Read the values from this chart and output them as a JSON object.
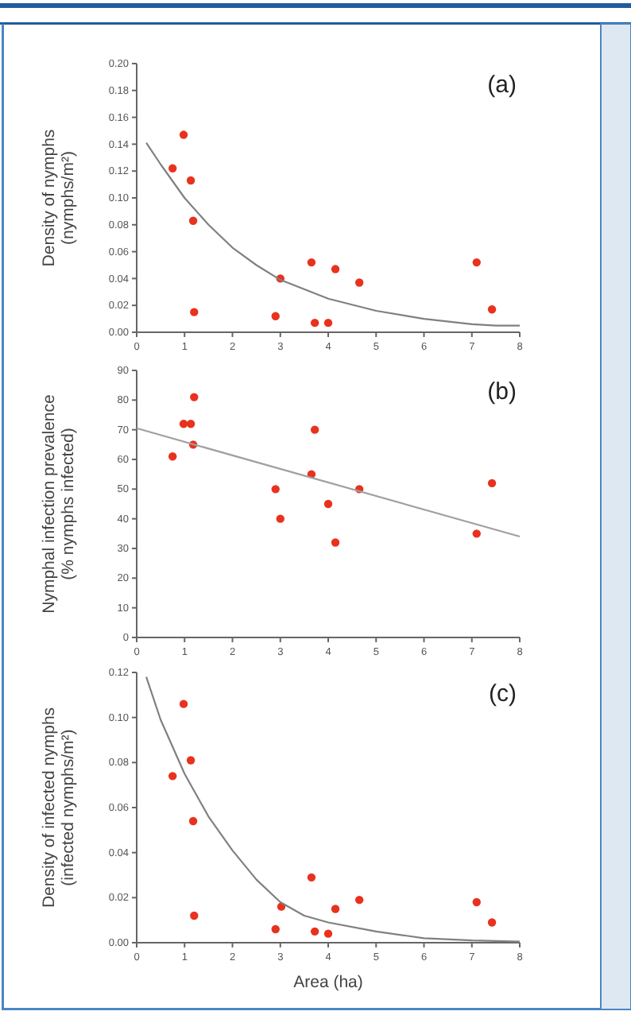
{
  "chart_data": [
    {
      "type": "scatter",
      "title": "(a)",
      "ylabel": "Density of nymphs\n(nymphs/m²)",
      "xlim": [
        0,
        8
      ],
      "xticks": [
        0,
        1,
        2,
        3,
        4,
        5,
        6,
        7,
        8
      ],
      "ylim": [
        0,
        0.2
      ],
      "yticks": [
        {
          "value": 0,
          "label": "0.00"
        },
        {
          "value": 0.02,
          "label": "0.02"
        },
        {
          "value": 0.04,
          "label": "0.04"
        },
        {
          "value": 0.06,
          "label": "0.06"
        },
        {
          "value": 0.08,
          "label": "0.08"
        },
        {
          "value": 0.1,
          "label": "0.10"
        },
        {
          "value": 0.12,
          "label": "0.12"
        },
        {
          "value": 0.14,
          "label": "0.14"
        },
        {
          "value": 0.16,
          "label": "0.16"
        },
        {
          "value": 0.18,
          "label": "0.18"
        },
        {
          "value": 0.2,
          "label": "0.20"
        }
      ],
      "grid": false,
      "marker": "circle",
      "series": [
        {
          "color": "#e8321e",
          "x": [
            0.75,
            0.98,
            1.13,
            1.18,
            1.2,
            2.9,
            3.0,
            3.65,
            3.72,
            4.0,
            4.15,
            4.65,
            7.1,
            7.42
          ],
          "values": [
            0.122,
            0.147,
            0.113,
            0.083,
            0.015,
            0.012,
            0.04,
            0.052,
            0.007,
            0.007,
            0.047,
            0.037,
            0.052,
            0.017
          ]
        },
        {
          "type": "line",
          "marker": "none",
          "color": "#808080",
          "x": [
            0.2,
            0.5,
            1,
            1.5,
            2,
            2.5,
            3,
            4,
            5,
            6,
            7,
            7.5,
            8
          ],
          "values": [
            0.141,
            0.125,
            0.1,
            0.08,
            0.063,
            0.05,
            0.039,
            0.025,
            0.016,
            0.01,
            0.006,
            0.005,
            0.005
          ]
        }
      ]
    },
    {
      "type": "scatter",
      "title": "(b)",
      "ylabel": "Nymphal infection prevalence\n(% nymphs infected)",
      "xlim": [
        0,
        8
      ],
      "xticks": [
        0,
        1,
        2,
        3,
        4,
        5,
        6,
        7,
        8
      ],
      "ylim": [
        0,
        90
      ],
      "yticks": [
        0,
        10,
        20,
        30,
        40,
        50,
        60,
        70,
        80,
        90
      ],
      "grid": false,
      "marker": "circle",
      "series": [
        {
          "color": "#e8321e",
          "x": [
            0.75,
            0.98,
            1.13,
            1.18,
            1.2,
            2.9,
            3.0,
            3.65,
            3.72,
            4.0,
            4.15,
            4.65,
            7.1,
            7.42
          ],
          "values": [
            61,
            72,
            72,
            65,
            81,
            50,
            40,
            55,
            70,
            45,
            32,
            50,
            35,
            52
          ]
        },
        {
          "type": "line",
          "marker": "none",
          "color": "#a0a0a0",
          "x": [
            0,
            8
          ],
          "values": [
            70.5,
            34
          ]
        }
      ]
    },
    {
      "type": "scatter",
      "title": "(c)",
      "xlabel": "Area (ha)",
      "ylabel": "Density of infected nymphs\n(infected nymphs/m²)",
      "xlim": [
        0,
        8
      ],
      "xticks": [
        0,
        1,
        2,
        3,
        4,
        5,
        6,
        7,
        8
      ],
      "ylim": [
        0,
        0.12
      ],
      "yticks": [
        {
          "value": 0,
          "label": "0.00"
        },
        {
          "value": 0.02,
          "label": "0.02"
        },
        {
          "value": 0.04,
          "label": "0.04"
        },
        {
          "value": 0.06,
          "label": "0.06"
        },
        {
          "value": 0.08,
          "label": "0.08"
        },
        {
          "value": 0.1,
          "label": "0.10"
        },
        {
          "value": 0.12,
          "label": "0.12"
        }
      ],
      "grid": false,
      "marker": "circle",
      "series": [
        {
          "color": "#e8321e",
          "x": [
            0.75,
            0.98,
            1.13,
            1.18,
            1.2,
            2.9,
            3.02,
            3.65,
            3.72,
            4.0,
            4.15,
            4.65,
            7.1,
            7.42
          ],
          "values": [
            0.074,
            0.106,
            0.081,
            0.054,
            0.012,
            0.006,
            0.016,
            0.029,
            0.005,
            0.004,
            0.015,
            0.019,
            0.018,
            0.009
          ]
        },
        {
          "type": "line",
          "marker": "none",
          "color": "#808080",
          "x": [
            0.2,
            0.5,
            1,
            1.5,
            2,
            2.5,
            3,
            3.5,
            4,
            5,
            6,
            7,
            8
          ],
          "values": [
            0.118,
            0.099,
            0.075,
            0.056,
            0.041,
            0.028,
            0.018,
            0.012,
            0.009,
            0.005,
            0.002,
            0.001,
            0.0005
          ]
        }
      ]
    }
  ]
}
